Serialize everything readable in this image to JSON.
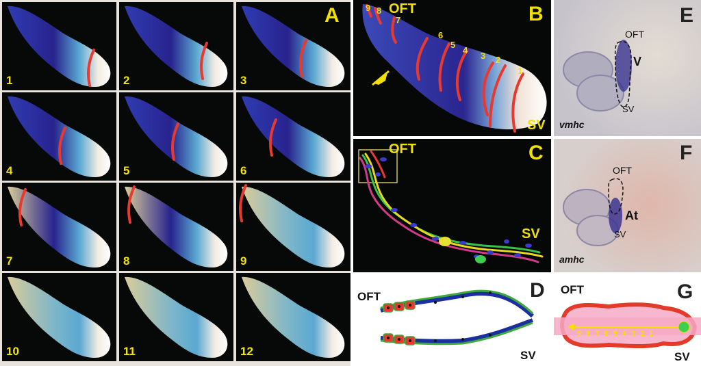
{
  "panel_a": {
    "letter": "A",
    "numbers": [
      "1",
      "2",
      "3",
      "4",
      "5",
      "6",
      "7",
      "8",
      "9",
      "10",
      "11",
      "12"
    ]
  },
  "panel_b": {
    "letter": "B",
    "oft": "OFT",
    "sv": "SV",
    "bands": [
      "9",
      "8",
      "7",
      "6",
      "5",
      "4",
      "3",
      "2",
      "1"
    ]
  },
  "panel_c": {
    "letter": "C",
    "oft": "OFT",
    "sv": "SV"
  },
  "panel_d": {
    "letter": "D",
    "oft": "OFT",
    "sv": "SV"
  },
  "panel_e": {
    "letter": "E",
    "oft": "OFT",
    "v": "V",
    "sv": "SV",
    "gene": "vmhc"
  },
  "panel_f": {
    "letter": "F",
    "oft": "OFT",
    "at": "At",
    "sv": "SV",
    "gene": "amhc"
  },
  "panel_g": {
    "letter": "G",
    "oft": "OFT",
    "sv": "SV",
    "segments": "9 8 7 6 5 4 3 2 1"
  },
  "colors": {
    "label_yellow": "#f2e000",
    "band_red": "#e8392f",
    "heart_red": "#e23b2a",
    "pink": "#f7b8cf"
  }
}
